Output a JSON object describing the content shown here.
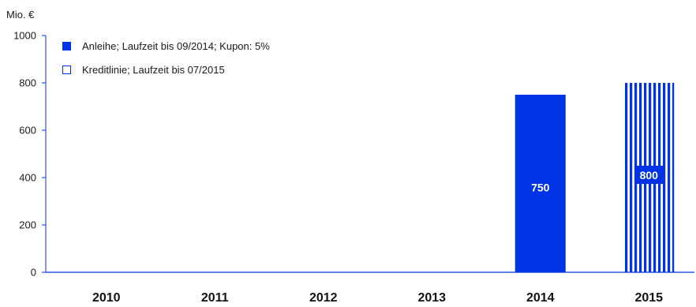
{
  "chart_data": {
    "type": "bar",
    "unit_label": "Mio. €",
    "categories": [
      "2010",
      "2011",
      "2012",
      "2013",
      "2014",
      "2015"
    ],
    "series": [
      {
        "name": "Anleihe; Laufzeit bis 09/2014; Kupon: 5%",
        "pattern": "solid",
        "values": [
          0,
          0,
          0,
          0,
          750,
          0
        ],
        "data_labels": [
          "",
          "",
          "",
          "",
          "750",
          ""
        ]
      },
      {
        "name": "Kreditlinie; Laufzeit bis 07/2015",
        "pattern": "striped",
        "values": [
          0,
          0,
          0,
          0,
          0,
          800
        ],
        "data_labels": [
          "",
          "",
          "",
          "",
          "",
          "800"
        ]
      }
    ],
    "ylim": [
      0,
      1000
    ],
    "yticks": [
      "0",
      "200",
      "400",
      "600",
      "800",
      "1000"
    ],
    "grid": false,
    "legend_position": "top-left",
    "colors": {
      "bar": "#0033e6",
      "axis": "#0033e6",
      "text": "#1a1a1a"
    }
  }
}
